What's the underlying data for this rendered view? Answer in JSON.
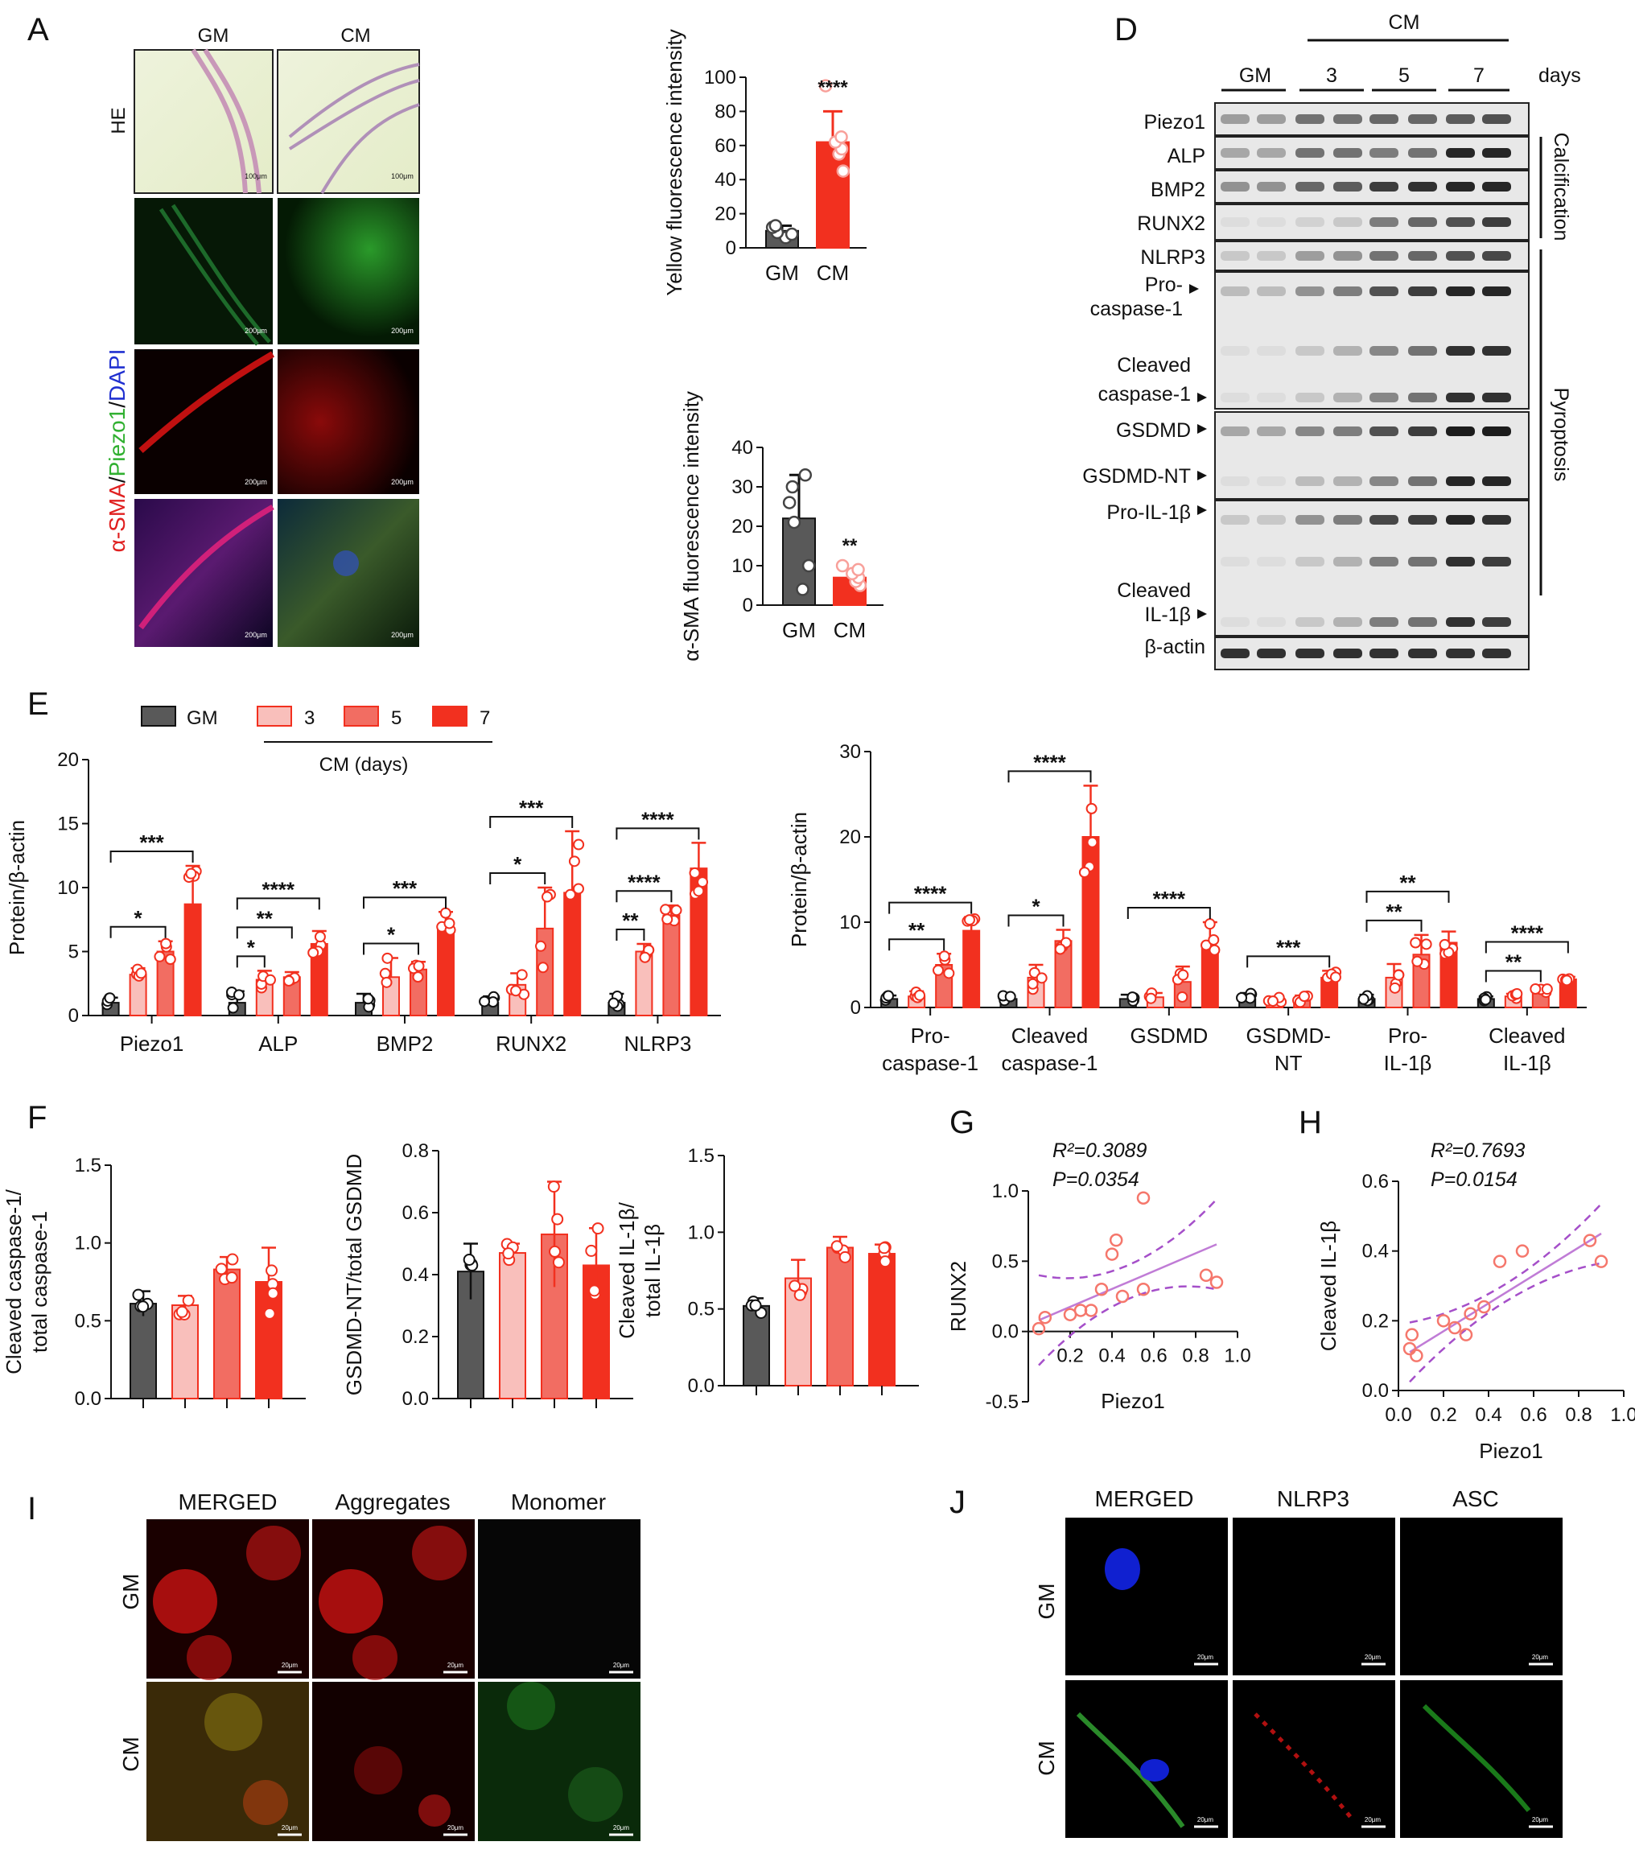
{
  "panels": {
    "A": {
      "label": "A",
      "cols": [
        "GM",
        "CM"
      ],
      "row_he": "HE",
      "stain": [
        "α-SMA",
        "/",
        "Piezo1",
        "/",
        "DAPI"
      ],
      "scale": [
        "100μm",
        "100μm",
        "200μm",
        "200μm",
        "200μm",
        "200μm",
        "200μm",
        "200μm"
      ]
    },
    "D": {
      "label": "D",
      "cm": "CM",
      "days": "days",
      "lanes": [
        "GM",
        "3",
        "5",
        "7"
      ],
      "proteins": [
        "Piezo1",
        "ALP",
        "BMP2",
        "RUNX2",
        "NLRP3",
        "Pro-",
        "caspase-1",
        "Cleaved",
        "caspase-1",
        "GSDMD",
        "GSDMD-NT",
        "Pro-IL-1β",
        "Cleaved",
        "IL-1β",
        "β-actin"
      ],
      "groups": [
        "Calcification",
        "Pyroptosis"
      ]
    },
    "E": {
      "label": "E",
      "legend": [
        "GM",
        "3",
        "5",
        "7"
      ],
      "legend_caption": "CM (days)"
    },
    "F": {
      "label": "F"
    },
    "G": {
      "label": "G",
      "r2": "R²=0.3089",
      "p": "P=0.0354"
    },
    "H": {
      "label": "H",
      "r2": "R²=0.7693",
      "p": "P=0.0154"
    },
    "I": {
      "label": "I",
      "cols": [
        "MERGED",
        "Aggregates",
        "Monomer"
      ],
      "rows": [
        "GM",
        "CM"
      ],
      "scale": "20μm"
    },
    "J": {
      "label": "J",
      "cols": [
        "MERGED",
        "NLRP3",
        "ASC"
      ],
      "rows": [
        "GM",
        "CM"
      ],
      "scale": "20μm"
    }
  },
  "colors": {
    "GM": "#595959",
    "CM3": "#f9bfbb",
    "CM5": "#f26d62",
    "CM7": "#f2301f",
    "fit": "#c07cd6",
    "ci": "#a54fc9"
  },
  "chart_data": [
    {
      "id": "B",
      "type": "bar",
      "categories": [
        "GM",
        "CM"
      ],
      "values": [
        10,
        62
      ],
      "error": [
        3,
        18
      ],
      "ylabel": "Yellow fluorescence intensity",
      "ylim": [
        0,
        100
      ],
      "yticks": [
        0,
        20,
        40,
        60,
        80,
        100
      ],
      "points": [
        [
          6,
          8,
          9,
          12,
          13
        ],
        [
          45,
          55,
          58,
          62,
          65,
          95
        ]
      ],
      "annotations": [
        "****"
      ]
    },
    {
      "id": "C",
      "type": "bar",
      "categories": [
        "GM",
        "CM"
      ],
      "values": [
        22,
        7
      ],
      "error": [
        11,
        2
      ],
      "ylabel": "α-SMA fluorescence intensity",
      "ylim": [
        0,
        40
      ],
      "yticks": [
        0,
        10,
        20,
        30,
        40
      ],
      "points": [
        [
          4,
          10,
          21,
          26,
          30,
          33
        ],
        [
          5,
          6,
          7,
          8,
          9,
          10
        ]
      ],
      "annotations": [
        "**"
      ]
    },
    {
      "id": "E1",
      "type": "bar",
      "ylabel": "Protein/β-actin",
      "ylim": [
        0,
        20
      ],
      "yticks": [
        0,
        5,
        10,
        15,
        20
      ],
      "categories": [
        "Piezo1",
        "ALP",
        "BMP2",
        "RUNX2",
        "NLRP3"
      ],
      "series": [
        {
          "name": "GM",
          "values": [
            1.0,
            1.0,
            1.0,
            1.0,
            1.0
          ]
        },
        {
          "name": "3",
          "values": [
            3.2,
            2.8,
            3.0,
            2.4,
            5.0
          ]
        },
        {
          "name": "5",
          "values": [
            5.0,
            3.0,
            3.6,
            6.8,
            7.8
          ]
        },
        {
          "name": "7",
          "values": [
            8.7,
            5.6,
            6.8,
            9.6,
            11.5
          ]
        }
      ],
      "error": [
        [
          0.4,
          0.9,
          0.7,
          0.5,
          0.7
        ],
        [
          0.5,
          0.7,
          1.5,
          0.9,
          0.6
        ],
        [
          0.8,
          0.4,
          0.6,
          3.2,
          0.8
        ],
        [
          3.0,
          1.0,
          1.3,
          4.8,
          2.0
        ]
      ],
      "annotations": [
        {
          "cat": 0,
          "from": 0,
          "to": 2,
          "text": "*"
        },
        {
          "cat": 0,
          "from": 0,
          "to": 3,
          "text": "***"
        },
        {
          "cat": 1,
          "from": 0,
          "to": 1,
          "text": "*"
        },
        {
          "cat": 1,
          "from": 0,
          "to": 2,
          "text": "**"
        },
        {
          "cat": 1,
          "from": 0,
          "to": 3,
          "text": "****"
        },
        {
          "cat": 2,
          "from": 0,
          "to": 2,
          "text": "*"
        },
        {
          "cat": 2,
          "from": 0,
          "to": 3,
          "text": "***"
        },
        {
          "cat": 3,
          "from": 0,
          "to": 2,
          "text": "*"
        },
        {
          "cat": 3,
          "from": 0,
          "to": 3,
          "text": "***"
        },
        {
          "cat": 4,
          "from": 0,
          "to": 1,
          "text": "**"
        },
        {
          "cat": 4,
          "from": 0,
          "to": 2,
          "text": "****"
        },
        {
          "cat": 4,
          "from": 0,
          "to": 3,
          "text": "****"
        }
      ]
    },
    {
      "id": "E2",
      "type": "bar",
      "ylabel": "Protein/β-actin",
      "ylim": [
        0,
        30
      ],
      "yticks": [
        0,
        10,
        20,
        30
      ],
      "categories": [
        [
          "Pro-",
          "caspase-1"
        ],
        [
          "Cleaved",
          "caspase-1"
        ],
        [
          "GSDMD"
        ],
        [
          "GSDMD-",
          "NT"
        ],
        [
          "Pro-",
          "IL-1β"
        ],
        [
          "Cleaved",
          "IL-1β"
        ]
      ],
      "series": [
        {
          "name": "GM",
          "values": [
            1.0,
            1.0,
            1.0,
            1.0,
            1.0,
            1.0
          ]
        },
        {
          "name": "3",
          "values": [
            1.3,
            3.5,
            1.2,
            0.9,
            3.5,
            1.3
          ]
        },
        {
          "name": "5",
          "values": [
            5.0,
            7.8,
            3.0,
            1.0,
            6.2,
            2.0
          ]
        },
        {
          "name": "7",
          "values": [
            9.0,
            20.0,
            7.0,
            3.5,
            7.6,
            3.3
          ]
        }
      ],
      "error": [
        [
          0.4,
          0.4,
          0.5,
          0.7,
          0.5,
          0.3
        ],
        [
          0.6,
          1.5,
          0.5,
          0.3,
          1.6,
          0.3
        ],
        [
          1.3,
          1.3,
          1.8,
          0.4,
          2.3,
          0.6
        ],
        [
          1.6,
          6.0,
          3.0,
          0.8,
          1.3,
          0.3
        ]
      ],
      "annotations": [
        {
          "cat": 0,
          "from": 0,
          "to": 2,
          "text": "**"
        },
        {
          "cat": 0,
          "from": 0,
          "to": 3,
          "text": "****"
        },
        {
          "cat": 1,
          "from": 0,
          "to": 2,
          "text": "*"
        },
        {
          "cat": 1,
          "from": 0,
          "to": 3,
          "text": "****"
        },
        {
          "cat": 2,
          "from": 0,
          "to": 3,
          "text": "****"
        },
        {
          "cat": 3,
          "from": 0,
          "to": 3,
          "text": "***"
        },
        {
          "cat": 4,
          "from": 0,
          "to": 2,
          "text": "**"
        },
        {
          "cat": 4,
          "from": 0,
          "to": 3,
          "text": "**"
        },
        {
          "cat": 5,
          "from": 0,
          "to": 2,
          "text": "**"
        },
        {
          "cat": 5,
          "from": 0,
          "to": 3,
          "text": "****"
        }
      ]
    },
    {
      "id": "F1",
      "type": "bar",
      "ylabel": [
        "Cleaved caspase-1/",
        "total caspase-1"
      ],
      "ylim": [
        0,
        1.5
      ],
      "yticks": [
        0.0,
        0.5,
        1.0,
        1.5
      ],
      "values": [
        0.61,
        0.6,
        0.83,
        0.75
      ],
      "error": [
        0.08,
        0.06,
        0.08,
        0.22
      ]
    },
    {
      "id": "F2",
      "type": "bar",
      "ylabel": [
        "GSDMD-NT/total GSDMD"
      ],
      "ylim": [
        0,
        0.8
      ],
      "yticks": [
        0.0,
        0.2,
        0.4,
        0.6,
        0.8
      ],
      "values": [
        0.41,
        0.47,
        0.53,
        0.43
      ],
      "error": [
        0.09,
        0.03,
        0.17,
        0.12
      ]
    },
    {
      "id": "F3",
      "type": "bar",
      "ylabel": [
        "Cleaved IL-1β/",
        "total IL-1β"
      ],
      "ylim": [
        0,
        1.5
      ],
      "yticks": [
        0.0,
        0.5,
        1.0,
        1.5
      ],
      "values": [
        0.52,
        0.7,
        0.9,
        0.86
      ],
      "error": [
        0.05,
        0.12,
        0.07,
        0.06
      ]
    },
    {
      "id": "G",
      "type": "scatter",
      "xlabel": "Piezo1",
      "ylabel": "RUNX2",
      "xlim": [
        0,
        1.0
      ],
      "ylim": [
        -0.5,
        1.0
      ],
      "xticks": [
        0.2,
        0.4,
        0.6,
        0.8,
        1.0
      ],
      "yticks": [
        -0.5,
        0.0,
        0.5,
        1.0
      ],
      "points": [
        [
          0.05,
          0.02
        ],
        [
          0.08,
          0.1
        ],
        [
          0.2,
          0.12
        ],
        [
          0.25,
          0.15
        ],
        [
          0.3,
          0.15
        ],
        [
          0.35,
          0.3
        ],
        [
          0.4,
          0.55
        ],
        [
          0.42,
          0.65
        ],
        [
          0.45,
          0.25
        ],
        [
          0.55,
          0.3
        ],
        [
          0.55,
          0.95
        ],
        [
          0.85,
          0.4
        ],
        [
          0.9,
          0.35
        ]
      ],
      "fit": [
        0.05,
        0.08,
        0.9,
        0.62
      ]
    },
    {
      "id": "H",
      "type": "scatter",
      "xlabel": "Piezo1",
      "ylabel": "Cleaved IL-1β",
      "xlim": [
        0,
        1.0
      ],
      "ylim": [
        0,
        0.6
      ],
      "xticks": [
        0.0,
        0.2,
        0.4,
        0.6,
        0.8,
        1.0
      ],
      "yticks": [
        0.0,
        0.2,
        0.4,
        0.6
      ],
      "points": [
        [
          0.05,
          0.12
        ],
        [
          0.06,
          0.16
        ],
        [
          0.08,
          0.1
        ],
        [
          0.2,
          0.2
        ],
        [
          0.25,
          0.18
        ],
        [
          0.3,
          0.16
        ],
        [
          0.32,
          0.22
        ],
        [
          0.38,
          0.24
        ],
        [
          0.45,
          0.37
        ],
        [
          0.55,
          0.4
        ],
        [
          0.85,
          0.43
        ],
        [
          0.9,
          0.37
        ]
      ],
      "fit": [
        0.05,
        0.11,
        0.9,
        0.45
      ]
    }
  ]
}
